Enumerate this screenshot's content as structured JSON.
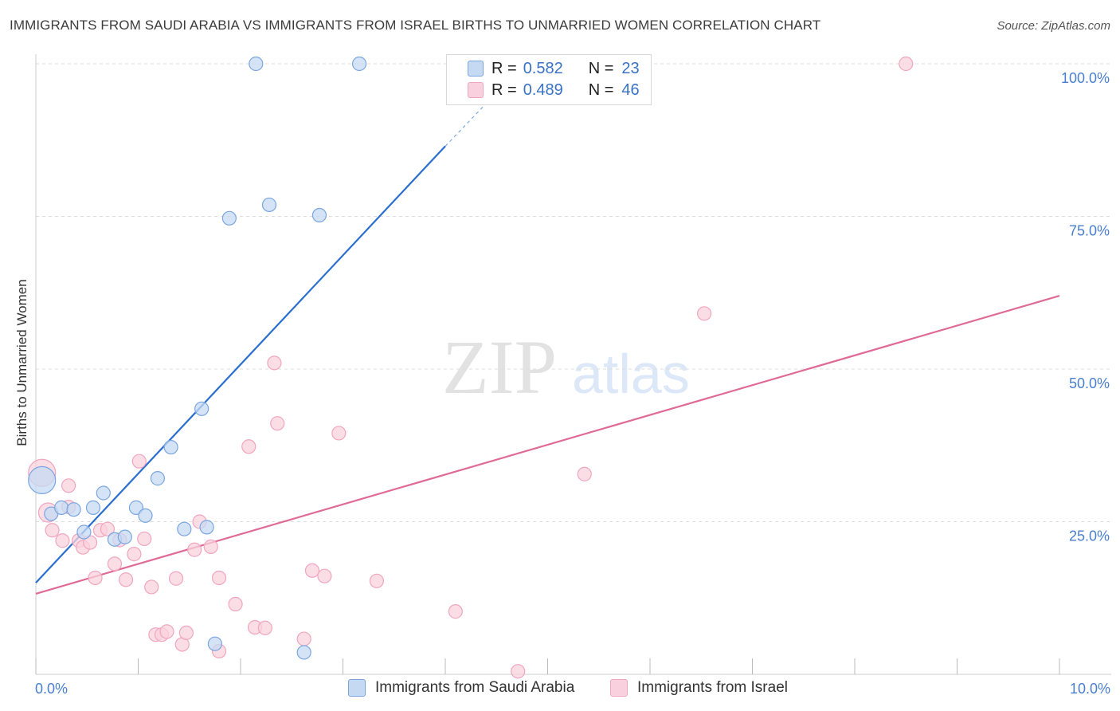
{
  "header": {
    "title": "IMMIGRANTS FROM SAUDI ARABIA VS IMMIGRANTS FROM ISRAEL BIRTHS TO UNMARRIED WOMEN CORRELATION CHART",
    "source": "Source: ZipAtlas.com"
  },
  "watermark": {
    "zip": "ZIP",
    "atlas": "atlas"
  },
  "legend": {
    "r_label": "R =",
    "n_label": "N =",
    "items": [
      {
        "r": "0.582",
        "n": "23"
      },
      {
        "r": "0.489",
        "n": "46"
      }
    ]
  },
  "chart_data": {
    "type": "scatter",
    "title": "IMMIGRANTS FROM SAUDI ARABIA VS IMMIGRANTS FROM ISRAEL BIRTHS TO UNMARRIED WOMEN CORRELATION CHART",
    "xlabel": "",
    "ylabel": "Births to Unmarried Women",
    "xlim": [
      0,
      10
    ],
    "ylim": [
      0,
      100
    ],
    "x_tick_labels": [
      "0.0%",
      "10.0%"
    ],
    "y_ticks": [
      {
        "value": 25,
        "label": "25.0%"
      },
      {
        "value": 50,
        "label": "50.0%"
      },
      {
        "value": 75,
        "label": "75.0%"
      },
      {
        "value": 100,
        "label": "100.0%"
      }
    ],
    "series": [
      {
        "name": "Immigrants from Saudi Arabia",
        "color": "#7aa6e0",
        "fill": "#c6d9f3",
        "line_color": "#2a6fd0",
        "trend": {
          "x0": 0.0,
          "y0": 15.0,
          "x1": 4.0,
          "y1": 86.5,
          "dash_to_x": 4.4,
          "dash_to_y": 93.5
        },
        "points": [
          {
            "x": 0.06,
            "y": 31.8,
            "big": true
          },
          {
            "x": 0.15,
            "y": 26.3
          },
          {
            "x": 0.25,
            "y": 27.3
          },
          {
            "x": 0.37,
            "y": 27.0
          },
          {
            "x": 0.47,
            "y": 23.3
          },
          {
            "x": 0.56,
            "y": 27.3
          },
          {
            "x": 0.66,
            "y": 29.7
          },
          {
            "x": 0.77,
            "y": 22.1
          },
          {
            "x": 0.87,
            "y": 22.5
          },
          {
            "x": 0.98,
            "y": 27.3
          },
          {
            "x": 1.07,
            "y": 26.0
          },
          {
            "x": 1.19,
            "y": 32.1
          },
          {
            "x": 1.32,
            "y": 37.2
          },
          {
            "x": 1.45,
            "y": 23.8
          },
          {
            "x": 1.67,
            "y": 24.1
          },
          {
            "x": 1.62,
            "y": 43.5
          },
          {
            "x": 1.75,
            "y": 5.0
          },
          {
            "x": 1.89,
            "y": 74.7
          },
          {
            "x": 2.15,
            "y": 100
          },
          {
            "x": 2.28,
            "y": 76.9
          },
          {
            "x": 2.62,
            "y": 3.6
          },
          {
            "x": 2.77,
            "y": 75.2
          },
          {
            "x": 3.16,
            "y": 100
          }
        ]
      },
      {
        "name": "Immigrants from Israel",
        "color": "#f0a6bf",
        "fill": "#f9d1de",
        "line_color": "#e06a97",
        "trend": {
          "x0": 0.0,
          "y0": 13.2,
          "x1": 10.0,
          "y1": 62.0
        },
        "points": [
          {
            "x": 0.06,
            "y": 33.0,
            "big": true
          },
          {
            "x": 0.12,
            "y": 26.5,
            "mid": true
          },
          {
            "x": 0.16,
            "y": 23.6
          },
          {
            "x": 0.26,
            "y": 21.9
          },
          {
            "x": 0.32,
            "y": 27.4
          },
          {
            "x": 0.32,
            "y": 30.9
          },
          {
            "x": 0.42,
            "y": 21.9
          },
          {
            "x": 0.46,
            "y": 20.8
          },
          {
            "x": 0.53,
            "y": 21.6
          },
          {
            "x": 0.58,
            "y": 15.8
          },
          {
            "x": 0.63,
            "y": 23.6
          },
          {
            "x": 0.7,
            "y": 23.8
          },
          {
            "x": 0.77,
            "y": 18.1
          },
          {
            "x": 0.82,
            "y": 22.0
          },
          {
            "x": 0.88,
            "y": 15.5
          },
          {
            "x": 0.96,
            "y": 19.7
          },
          {
            "x": 1.01,
            "y": 34.9
          },
          {
            "x": 1.06,
            "y": 22.2
          },
          {
            "x": 1.13,
            "y": 14.3
          },
          {
            "x": 1.17,
            "y": 6.5
          },
          {
            "x": 1.23,
            "y": 6.5
          },
          {
            "x": 1.28,
            "y": 7.0
          },
          {
            "x": 1.37,
            "y": 15.7
          },
          {
            "x": 1.43,
            "y": 4.9
          },
          {
            "x": 1.47,
            "y": 6.8
          },
          {
            "x": 1.55,
            "y": 20.4
          },
          {
            "x": 1.6,
            "y": 25.0
          },
          {
            "x": 1.71,
            "y": 20.9
          },
          {
            "x": 1.79,
            "y": 15.8
          },
          {
            "x": 1.79,
            "y": 3.8
          },
          {
            "x": 1.95,
            "y": 11.5
          },
          {
            "x": 2.08,
            "y": 37.3
          },
          {
            "x": 2.14,
            "y": 7.7
          },
          {
            "x": 2.24,
            "y": 7.6
          },
          {
            "x": 2.33,
            "y": 51.0
          },
          {
            "x": 2.36,
            "y": 41.1
          },
          {
            "x": 2.62,
            "y": 5.8
          },
          {
            "x": 2.7,
            "y": 17.0
          },
          {
            "x": 2.82,
            "y": 16.1
          },
          {
            "x": 2.96,
            "y": 39.5
          },
          {
            "x": 3.33,
            "y": 15.3
          },
          {
            "x": 4.1,
            "y": 10.3
          },
          {
            "x": 4.71,
            "y": 0.5
          },
          {
            "x": 5.36,
            "y": 32.8
          },
          {
            "x": 6.53,
            "y": 59.1
          },
          {
            "x": 8.5,
            "y": 100
          }
        ]
      }
    ]
  }
}
